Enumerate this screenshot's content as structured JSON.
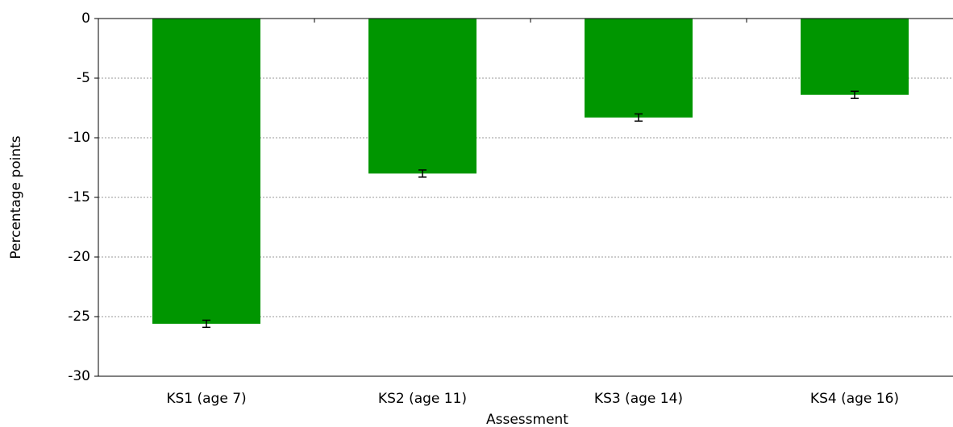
{
  "chart_data": {
    "type": "bar",
    "xlabel": "Assessment",
    "ylabel": "Percentage points",
    "categories": [
      "KS1 (age 7)",
      "KS2 (age 11)",
      "KS3 (age 14)",
      "KS4 (age 16)"
    ],
    "values": [
      -25.6,
      -13.0,
      -8.3,
      -6.4
    ],
    "errors": [
      0.3,
      0.3,
      0.3,
      0.3
    ],
    "color": "#009600",
    "ylim": [
      -30,
      0
    ],
    "yticks": [
      0,
      -5,
      -10,
      -15,
      -20,
      -25,
      -30
    ],
    "grid": true
  }
}
